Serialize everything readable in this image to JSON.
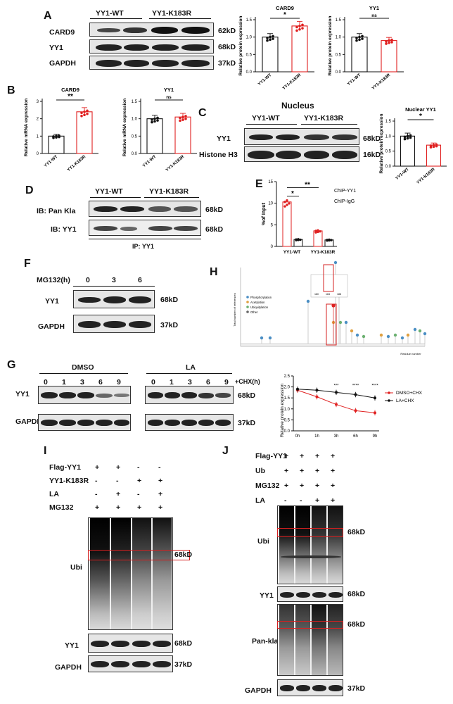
{
  "panels": {
    "A": "A",
    "B": "B",
    "C": "C",
    "D": "D",
    "E": "E",
    "F": "F",
    "G": "G",
    "H": "H",
    "I": "I",
    "J": "J"
  },
  "A": {
    "groups": [
      "YY1-WT",
      "YY1-K183R"
    ],
    "rows": [
      "CARD9",
      "YY1",
      "GAPDH"
    ],
    "kd": [
      "62kD",
      "68kD",
      "37kD"
    ],
    "chart1": {
      "title": "CARD9",
      "ylabel": "Relative protein expression",
      "sig": "*",
      "ticks": [
        "0.0",
        "0.5",
        "1.0",
        "1.5"
      ],
      "xcats": [
        "YY1-WT",
        "YY1-K183R"
      ]
    },
    "chart2": {
      "title": "YY1",
      "ylabel": "Relative protein expression",
      "sig": "ns",
      "ticks": [
        "0.0",
        "0.5",
        "1.0",
        "1.5"
      ],
      "xcats": [
        "YY1-WT",
        "YY1-K183R"
      ]
    }
  },
  "B": {
    "chart1": {
      "title": "CARD9",
      "ylabel": "Relative mRNA expression",
      "sig": "**",
      "ticks": [
        "0",
        "1",
        "2",
        "3"
      ],
      "xcats": [
        "YY1-WT",
        "YY1-K183R"
      ]
    },
    "chart2": {
      "title": "YY1",
      "ylabel": "Relative mRNA expression",
      "sig": "ns",
      "ticks": [
        "0.0",
        "0.5",
        "1.0",
        "1.5"
      ],
      "xcats": [
        "YY1-WT",
        "YY1-K183R"
      ]
    }
  },
  "C": {
    "header": "Nucleus",
    "groups": [
      "YY1-WT",
      "YY1-K183R"
    ],
    "rows": [
      "YY1",
      "Histone H3"
    ],
    "kd": [
      "68kD",
      "16kD"
    ],
    "chart": {
      "title": "Nuclear YY1",
      "ylabel": "Relative protein expression",
      "sig": "*",
      "ticks": [
        "0.0",
        "0.5",
        "1.0",
        "1.5"
      ],
      "xcats": [
        "YY1-WT",
        "YY1-K183R"
      ]
    }
  },
  "D": {
    "groups": [
      "YY1-WT",
      "YY1-K183R"
    ],
    "rows": [
      "IB: Pan Kla",
      "IB: YY1"
    ],
    "kd": [
      "68kD",
      "68kD"
    ],
    "footer": "IP: YY1"
  },
  "E": {
    "ylabel": "%of Input",
    "legend": [
      "ChIP-YY1",
      "ChIP-IgG"
    ],
    "sig1": "*",
    "sig2": "**",
    "ticks": [
      "0",
      "5",
      "10",
      "15"
    ],
    "xcats": [
      "YY1-WT",
      "YY1-K183R"
    ]
  },
  "F": {
    "treat": "MG132(h)",
    "times": [
      "0",
      "3",
      "6"
    ],
    "rows": [
      "YY1",
      "GAPDH"
    ],
    "kd": [
      "68kD",
      "37kD"
    ]
  },
  "G": {
    "groups": [
      "DMSO",
      "LA"
    ],
    "times": [
      "0",
      "1",
      "3",
      "6",
      "9"
    ],
    "chx": "+CHX(h)",
    "rows": [
      "YY1",
      "GAPDH"
    ],
    "kd": [
      "68kD",
      "37kD"
    ],
    "chart": {
      "ylabel": "Relative protein expression",
      "ticks": [
        "0.0",
        "0.5",
        "1.0",
        "1.5",
        "2.0",
        "2.5"
      ],
      "xcats": [
        "0h",
        "1h",
        "3h",
        "6h",
        "9h"
      ],
      "sigs": [
        "***",
        "****",
        "****"
      ],
      "legend": [
        "DMSO+CHX",
        "LA+CHX"
      ]
    }
  },
  "H": {
    "ylabel": "Total number of references",
    "xlabel": "Residue number",
    "legend": [
      "Phosphorylation",
      "Acetylation",
      "Ubiquitylation",
      "Other"
    ],
    "zoom": [
      "180",
      "184",
      "188"
    ]
  },
  "I": {
    "conds": [
      {
        "name": "Flag-YY1",
        "vals": [
          "+",
          "+",
          "-",
          "-"
        ]
      },
      {
        "name": "YY1-K183R",
        "vals": [
          "-",
          "-",
          "+",
          "+"
        ]
      },
      {
        "name": "LA",
        "vals": [
          "-",
          "+",
          "-",
          "+"
        ]
      },
      {
        "name": "MG132",
        "vals": [
          "+",
          "+",
          "+",
          "+"
        ]
      }
    ],
    "rows": [
      "Ubi",
      "YY1",
      "GAPDH"
    ],
    "kd": [
      "68kD",
      "68kD",
      "37kD"
    ]
  },
  "J": {
    "conds": [
      {
        "name": "Flag-YY1",
        "vals": [
          "+",
          "+",
          "+",
          "+"
        ]
      },
      {
        "name": "Ub",
        "vals": [
          "+",
          "+",
          "+",
          "+"
        ]
      },
      {
        "name": "MG132",
        "vals": [
          "+",
          "+",
          "+",
          "+"
        ]
      },
      {
        "name": "LA",
        "vals": [
          "-",
          "-",
          "+",
          "+"
        ]
      }
    ],
    "rows": [
      "Ubi",
      "YY1",
      "Pan-kla",
      "GAPDH"
    ],
    "kd": [
      "68kD",
      "68kD",
      "68kD",
      "37kD"
    ]
  },
  "chart_data": [
    {
      "type": "bar",
      "title": "CARD9",
      "ylabel": "Relative protein expression",
      "categories": [
        "YY1-WT",
        "YY1-K183R"
      ],
      "values": [
        1.0,
        1.32
      ],
      "ylim": [
        0,
        1.5
      ]
    },
    {
      "type": "bar",
      "title": "YY1",
      "ylabel": "Relative protein expression",
      "categories": [
        "YY1-WT",
        "YY1-K183R"
      ],
      "values": [
        1.0,
        0.9
      ],
      "ylim": [
        0,
        1.5
      ]
    },
    {
      "type": "bar",
      "title": "CARD9",
      "ylabel": "Relative mRNA expression",
      "categories": [
        "YY1-WT",
        "YY1-K183R"
      ],
      "values": [
        1.0,
        2.4
      ],
      "ylim": [
        0,
        3
      ]
    },
    {
      "type": "bar",
      "title": "YY1",
      "ylabel": "Relative mRNA expression",
      "categories": [
        "YY1-WT",
        "YY1-K183R"
      ],
      "values": [
        1.0,
        1.05
      ],
      "ylim": [
        0,
        1.5
      ]
    },
    {
      "type": "bar",
      "title": "Nuclear YY1",
      "ylabel": "Relative protein expression",
      "categories": [
        "YY1-WT",
        "YY1-K183R"
      ],
      "values": [
        1.0,
        0.7
      ],
      "ylim": [
        0,
        1.5
      ]
    },
    {
      "type": "bar",
      "ylabel": "%of Input",
      "categories": [
        "YY1-WT",
        "YY1-K183R"
      ],
      "series": [
        {
          "name": "ChIP-YY1",
          "values": [
            10.3,
            3.6
          ]
        },
        {
          "name": "ChIP-IgG",
          "values": [
            1.6,
            1.5
          ]
        }
      ],
      "ylim": [
        0,
        15
      ]
    },
    {
      "type": "line",
      "ylabel": "Relative protein expression",
      "x": [
        "0h",
        "1h",
        "3h",
        "6h",
        "9h"
      ],
      "series": [
        {
          "name": "DMSO+CHX",
          "values": [
            1.85,
            1.55,
            1.2,
            0.92,
            0.82
          ]
        },
        {
          "name": "LA+CHX",
          "values": [
            1.9,
            1.85,
            1.75,
            1.65,
            1.5
          ]
        }
      ],
      "ylim": [
        0,
        2.5
      ]
    }
  ]
}
